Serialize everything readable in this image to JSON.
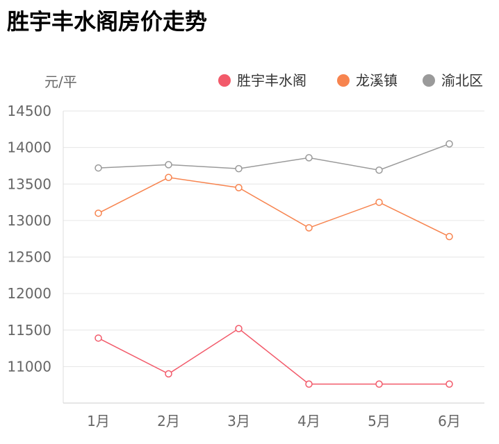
{
  "title": "胜宇丰水阁房价走势",
  "chart_data": {
    "type": "line",
    "title": "胜宇丰水阁房价走势",
    "ylabel": "元/平",
    "categories": [
      "1月",
      "2月",
      "3月",
      "4月",
      "5月",
      "6月"
    ],
    "ylim": [
      10500,
      14500
    ],
    "yticks": [
      11000,
      11500,
      12000,
      12500,
      13000,
      13500,
      14000,
      14500
    ],
    "grid": true,
    "legend_position": "top-right",
    "series": [
      {
        "name": "胜宇丰水阁",
        "color": "#f25a6a",
        "values": [
          11390,
          10900,
          11520,
          10760,
          10760,
          10760
        ]
      },
      {
        "name": "龙溪镇",
        "color": "#f7844f",
        "values": [
          13100,
          13590,
          13450,
          12900,
          13250,
          12780
        ]
      },
      {
        "name": "渝北区",
        "color": "#9a9a9a",
        "values": [
          13720,
          13765,
          13710,
          13860,
          13690,
          14050
        ]
      }
    ]
  }
}
